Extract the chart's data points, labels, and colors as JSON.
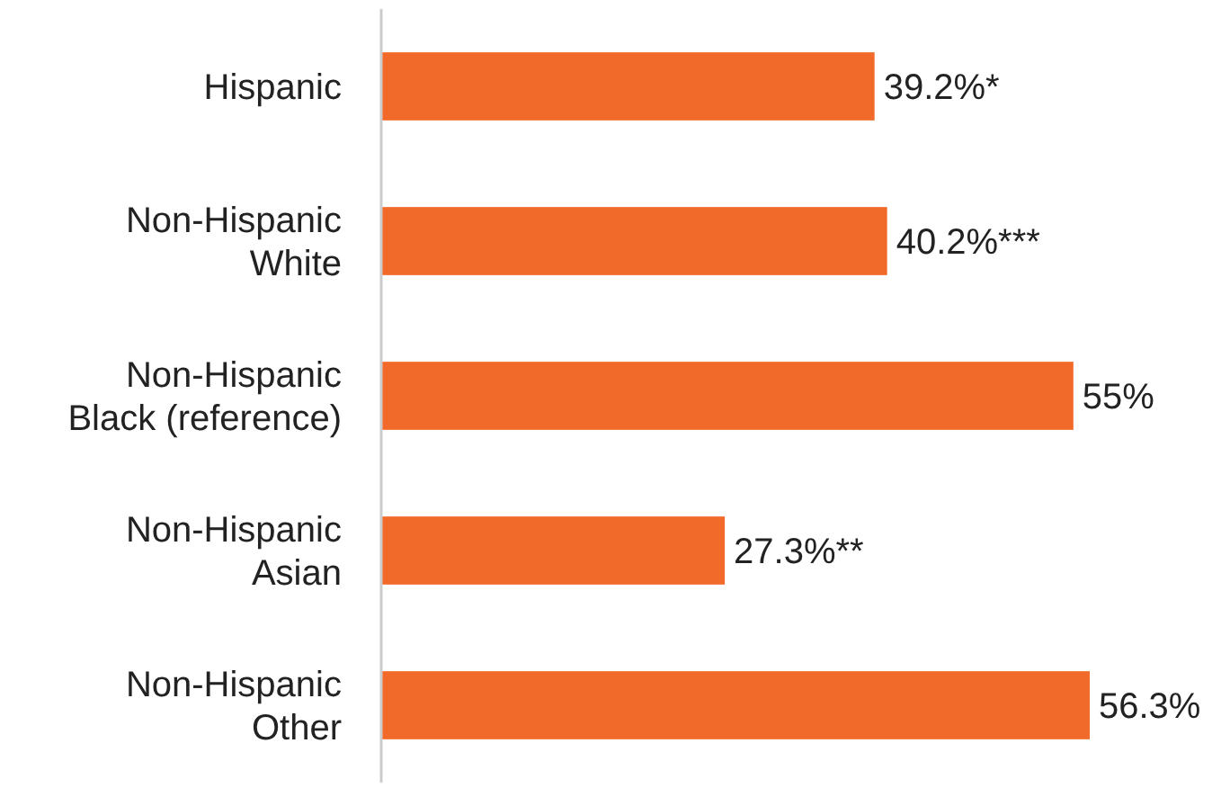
{
  "chart_data": {
    "type": "bar",
    "orientation": "horizontal",
    "categories": [
      "Hispanic",
      "Non-Hispanic\nWhite",
      "Non-Hispanic\nBlack (reference)",
      "Non-Hispanic\nAsian",
      "Non-Hispanic\nOther"
    ],
    "values": [
      39.2,
      40.2,
      55,
      27.3,
      56.3
    ],
    "value_labels": [
      "39.2%*",
      "40.2%***",
      "55%",
      "27.3%**",
      "56.3%"
    ],
    "color": "#f26a29",
    "tick_labels": "y"
  }
}
